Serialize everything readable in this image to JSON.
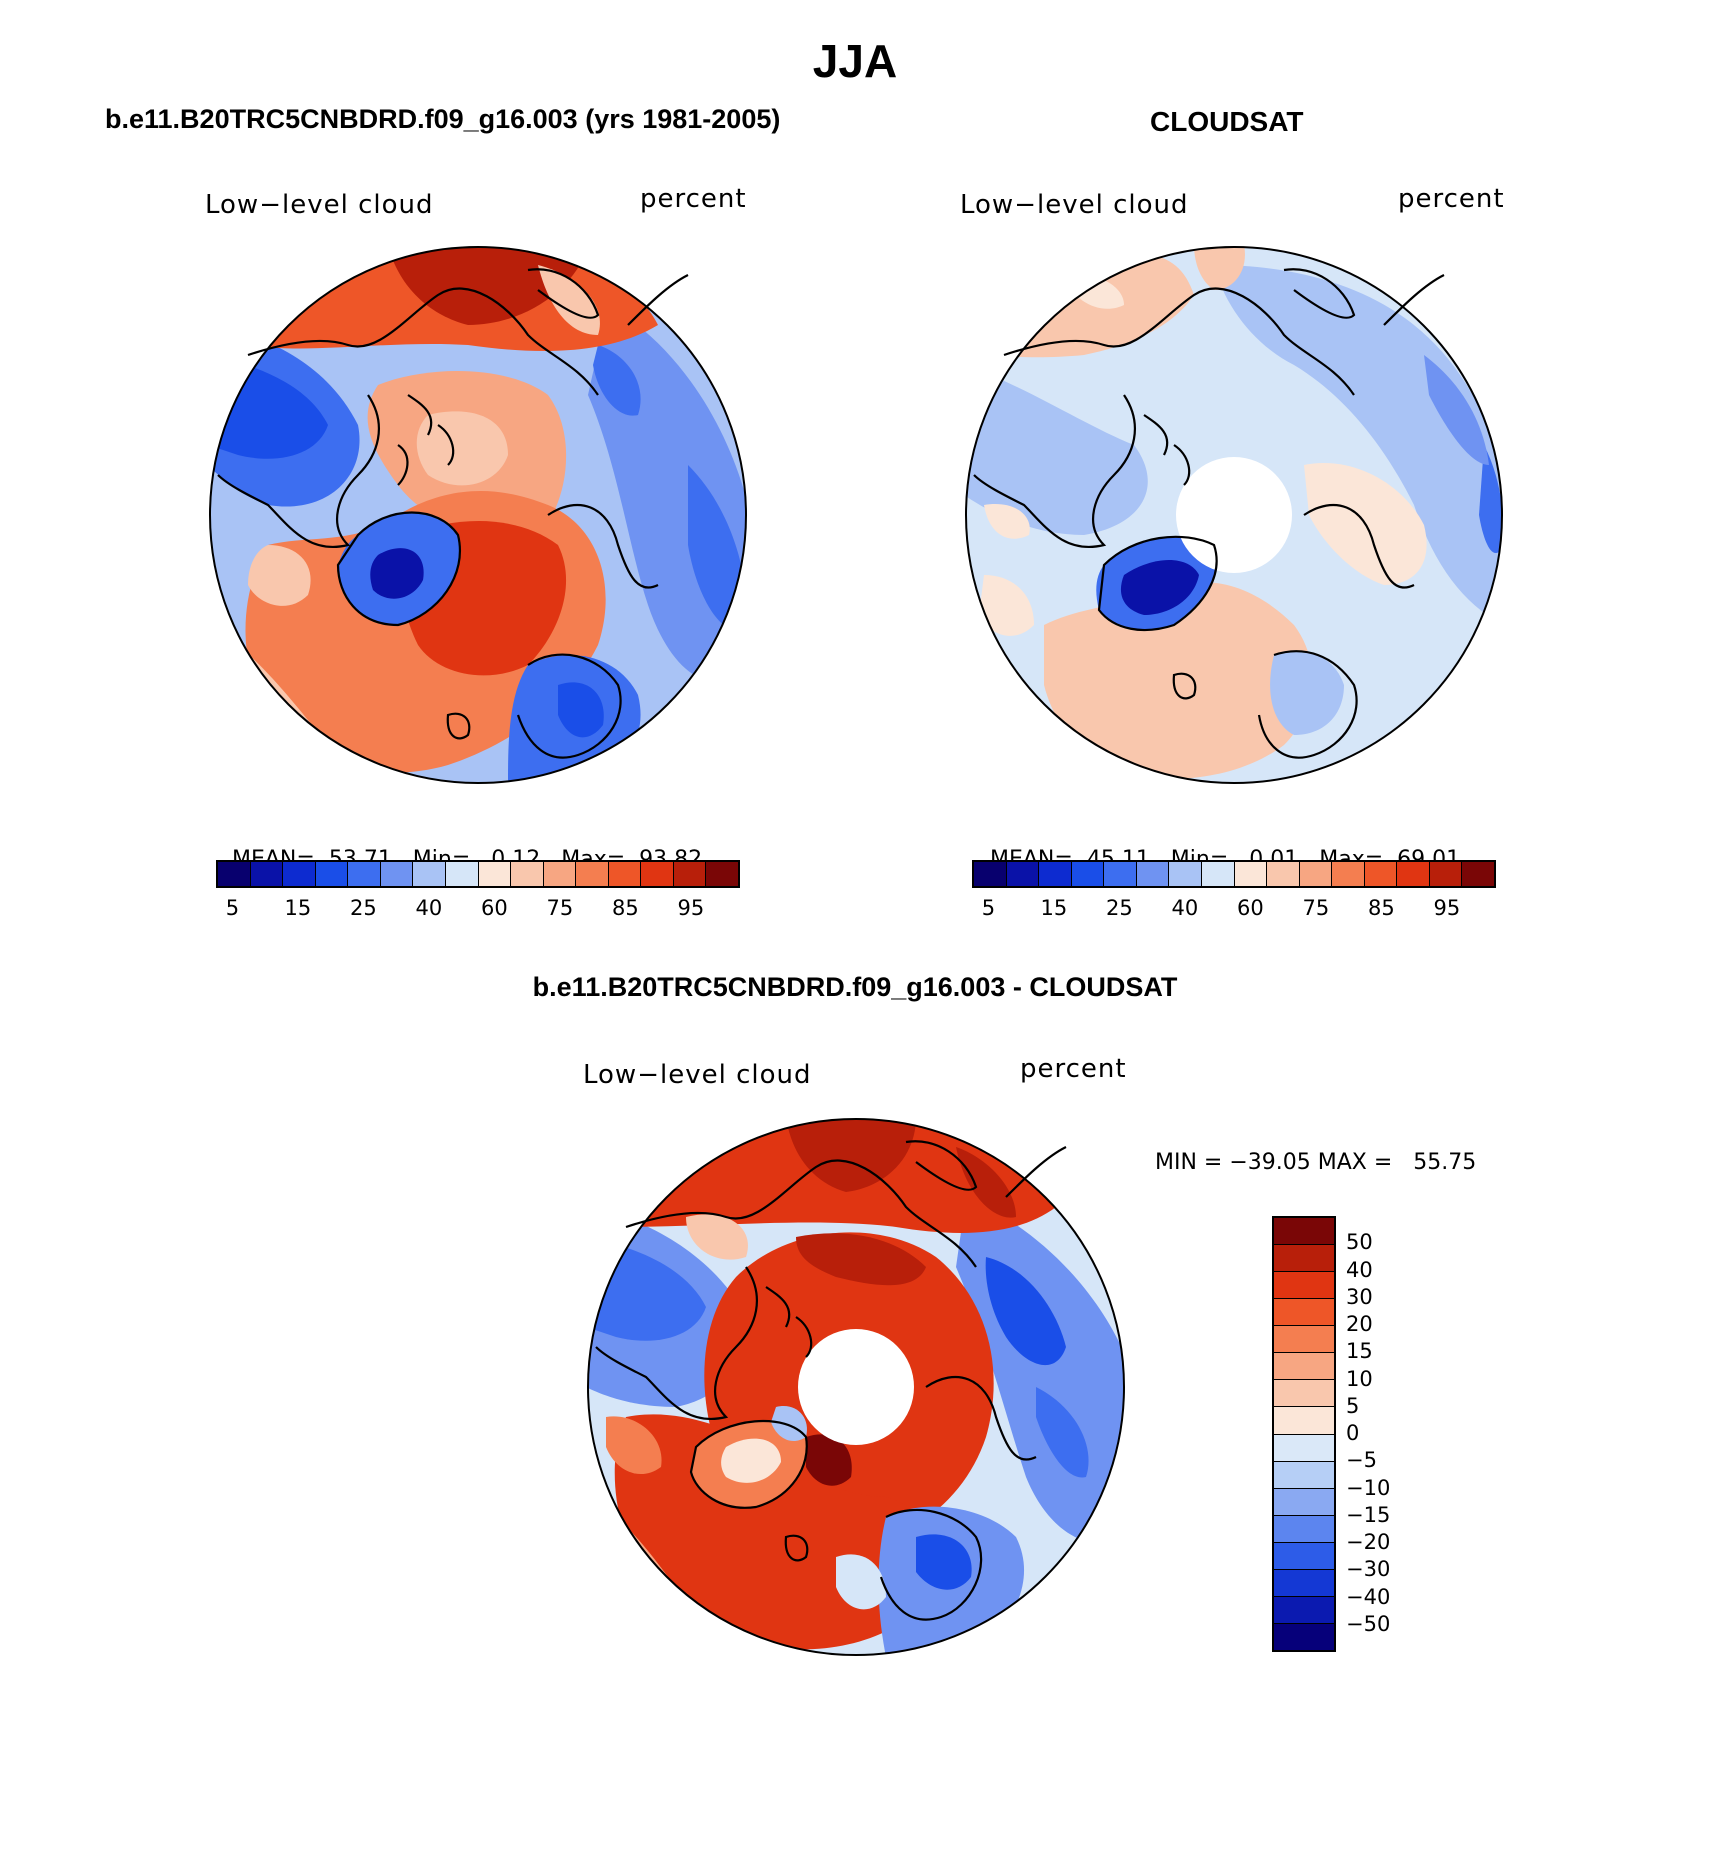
{
  "season": "JJA",
  "panels": {
    "model": {
      "case_title": "b.e11.B20TRC5CNBDRD.f09_g16.003 (yrs 1981-2005)",
      "variable": "Low−level cloud",
      "units": "percent",
      "mean_label": "MEAN=",
      "mean_value": "53.71",
      "min_label": "Min=",
      "min_value": "0.12",
      "max_label": "Max=",
      "max_value": "93.82"
    },
    "obs": {
      "case_title": "CLOUDSAT",
      "variable": "Low−level cloud",
      "units": "percent",
      "mean_label": "MEAN=",
      "mean_value": "45.11",
      "min_label": "Min=",
      "min_value": "0.01",
      "max_label": "Max=",
      "max_value": "69.01"
    },
    "diff": {
      "case_title": "b.e11.B20TRC5CNBDRD.f09_g16.003 - CLOUDSAT",
      "variable": "Low−level cloud",
      "units": "percent",
      "minmax_text": "MIN = −39.05 MAX =   55.75"
    }
  },
  "abs_colorbar": {
    "colors": [
      "#08006e",
      "#0a12a8",
      "#0d2bd0",
      "#1a4ee8",
      "#3d6ef0",
      "#6f93f2",
      "#a9c3f5",
      "#d6e6f8",
      "#fbe6d8",
      "#f9c7ad",
      "#f7a682",
      "#f47e50",
      "#ee5628",
      "#e03512",
      "#b81f0a",
      "#7a0606"
    ],
    "tick_labels": [
      "5",
      "15",
      "25",
      "40",
      "60",
      "75",
      "85",
      "95"
    ]
  },
  "diff_colorbar": {
    "colors": [
      "#7a0606",
      "#b81f0a",
      "#e03512",
      "#ee5628",
      "#f47e50",
      "#f7a682",
      "#f9c7ad",
      "#fbe6d8",
      "#dae8f8",
      "#b6cff6",
      "#8aa9f2",
      "#5c85ef",
      "#2d5ce8",
      "#1438d4",
      "#0b1ab0",
      "#06007a"
    ],
    "tick_labels": [
      "50",
      "40",
      "30",
      "20",
      "15",
      "10",
      "5",
      "0",
      "−5",
      "−10",
      "−15",
      "−20",
      "−30",
      "−40",
      "−50"
    ]
  },
  "map_colors": {
    "red_dark": "#b81f0a",
    "red": "#e03512",
    "red_mid": "#ee5628",
    "red_light": "#f47e50",
    "salmon": "#f7a682",
    "peach": "#f9c7ad",
    "cream": "#fbe6d8",
    "blue_pale": "#d6e6f8",
    "blue_light": "#a9c3f5",
    "blue_mid": "#6f93f2",
    "blue": "#3d6ef0",
    "blue_dark": "#1a4ee8",
    "navy": "#0a12a8"
  }
}
